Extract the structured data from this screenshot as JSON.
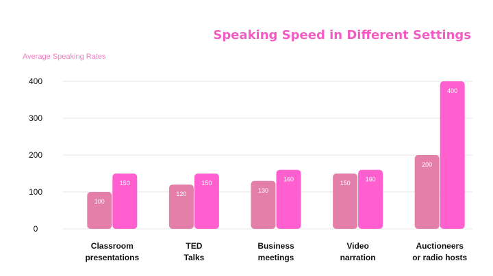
{
  "colors": {
    "title": "#f45bc3",
    "ylabel": "#f07bc2",
    "bar_low": "#e37fa8",
    "bar_high": "#ff5fcf",
    "grid": "#e6e6e6",
    "axis_text": "#111111",
    "bar_label": "#ffffff"
  },
  "chart_data": {
    "type": "bar",
    "title": "Speaking Speed in Different Settings",
    "ylabel": "Average Speaking Rates",
    "xlabel": "",
    "ylim": [
      0,
      400
    ],
    "yticks": [
      0,
      100,
      200,
      300,
      400
    ],
    "grid": true,
    "categories": [
      [
        "Classroom",
        "presentations"
      ],
      [
        "TED",
        "Talks"
      ],
      [
        "Business",
        "meetings"
      ],
      [
        "Video",
        "narration"
      ],
      [
        "Auctioneers",
        "or radio hosts"
      ]
    ],
    "series": [
      {
        "values": [
          100,
          120,
          130,
          150,
          200
        ],
        "color_key": "bar_low"
      },
      {
        "values": [
          150,
          150,
          160,
          160,
          400
        ],
        "color_key": "bar_high"
      }
    ],
    "show_value_labels": true
  }
}
